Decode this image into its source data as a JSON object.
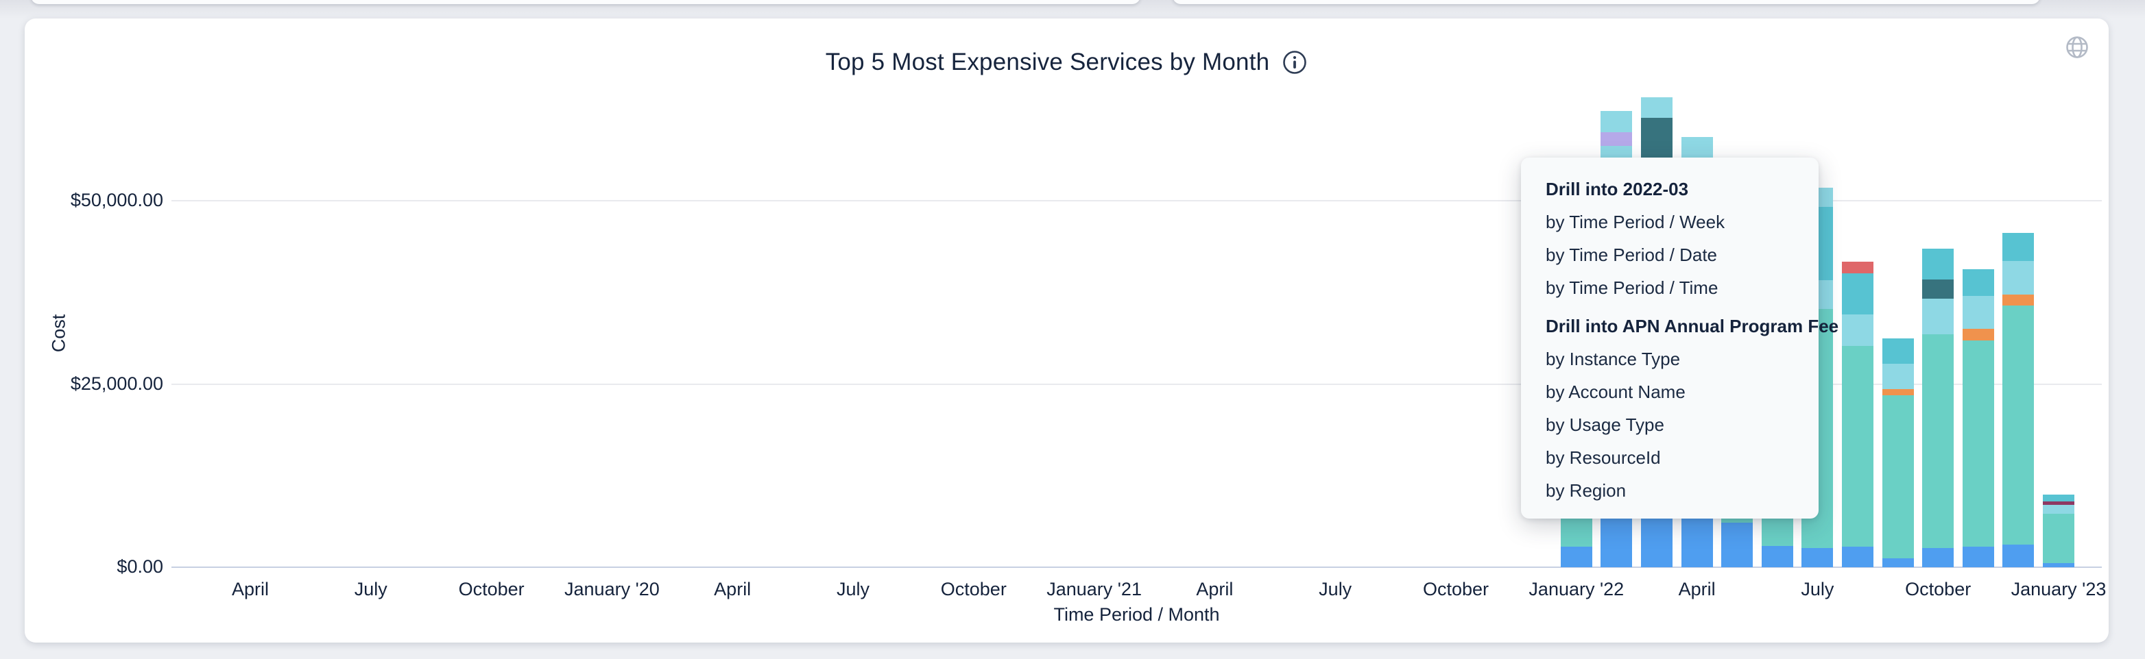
{
  "header": {
    "title": "Top 5 Most Expensive Services by Month",
    "info_icon": "info-circle",
    "globe_icon": "globe"
  },
  "colors": {
    "blue": "#4f9ef0",
    "seafoam": "#6ad0c5",
    "lightcyan": "#8ed8e4",
    "teal": "#57c3d2",
    "darkteal": "#37737e",
    "lavender": "#b5a9e9",
    "red": "#df6769",
    "orange": "#f0924d",
    "maroon": "#8e3963",
    "grid": "#e9eaee",
    "axis_base": "#c7d0e2",
    "text": "#15233c"
  },
  "chart_data": {
    "type": "bar",
    "stacked": true,
    "title": "Top 5 Most Expensive Services by Month",
    "xlabel": "Time Period / Month",
    "ylabel": "Cost",
    "ylim": [
      0,
      53500
    ],
    "grid": "horizontal",
    "legend": "none",
    "y_ticks": [
      {
        "label": "$0.00",
        "value": 0
      },
      {
        "label": "$25,000.00",
        "value": 25000
      },
      {
        "label": "$50,000.00",
        "value": 50000
      }
    ],
    "x_months_span": 48,
    "x_ticks": [
      {
        "label": "April",
        "month_index": 2
      },
      {
        "label": "July",
        "month_index": 5
      },
      {
        "label": "October",
        "month_index": 8
      },
      {
        "label": "January '20",
        "month_index": 11
      },
      {
        "label": "April",
        "month_index": 14
      },
      {
        "label": "July",
        "month_index": 17
      },
      {
        "label": "October",
        "month_index": 20
      },
      {
        "label": "January '21",
        "month_index": 23
      },
      {
        "label": "April",
        "month_index": 26
      },
      {
        "label": "July",
        "month_index": 29
      },
      {
        "label": "October",
        "month_index": 32
      },
      {
        "label": "January '22",
        "month_index": 35
      },
      {
        "label": "April",
        "month_index": 38
      },
      {
        "label": "July",
        "month_index": 41
      },
      {
        "label": "October",
        "month_index": 44
      },
      {
        "label": "January '23",
        "month_index": 47
      }
    ],
    "bars": [
      {
        "month": "2022-01",
        "month_index": 35,
        "segments": [
          {
            "color": "blue",
            "value": 2810
          },
          {
            "color": "seafoam",
            "value": 26190
          },
          {
            "color": "lightcyan",
            "value": 3000
          },
          {
            "color": "teal",
            "value": 3000
          }
        ]
      },
      {
        "month": "2022-02",
        "month_index": 36,
        "segments": [
          {
            "color": "blue",
            "value": 12470
          },
          {
            "color": "seafoam",
            "value": 39000
          },
          {
            "color": "lightcyan",
            "value": 6000
          },
          {
            "color": "lavender",
            "value": 1870
          },
          {
            "color": "lightcyan",
            "value": 2900
          }
        ]
      },
      {
        "month": "2022-03",
        "month_index": 37,
        "segments": [
          {
            "color": "blue",
            "value": 12310
          },
          {
            "color": "seafoam",
            "value": 37000
          },
          {
            "color": "darkteal",
            "value": 12000
          },
          {
            "color": "lightcyan",
            "value": 2810
          }
        ]
      },
      {
        "month": "2022-04",
        "month_index": 38,
        "segments": [
          {
            "color": "blue",
            "value": 12690
          },
          {
            "color": "seafoam",
            "value": 40000
          },
          {
            "color": "lightcyan",
            "value": 6000
          }
        ]
      },
      {
        "month": "2022-05",
        "month_index": 39,
        "segments": [
          {
            "color": "blue",
            "value": 6080
          },
          {
            "color": "seafoam",
            "value": 23920
          },
          {
            "color": "lightcyan",
            "value": 3000
          }
        ]
      },
      {
        "month": "2022-06",
        "month_index": 40,
        "segments": [
          {
            "color": "blue",
            "value": 2900
          },
          {
            "color": "seafoam",
            "value": 25100
          },
          {
            "color": "lightcyan",
            "value": 3000
          }
        ]
      },
      {
        "month": "2022-07",
        "month_index": 41,
        "segments": [
          {
            "color": "blue",
            "value": 2620
          },
          {
            "color": "seafoam",
            "value": 32660
          },
          {
            "color": "lightcyan",
            "value": 3840
          },
          {
            "color": "teal",
            "value": 10010
          },
          {
            "color": "lightcyan",
            "value": 2620
          }
        ]
      },
      {
        "month": "2022-08",
        "month_index": 42,
        "segments": [
          {
            "color": "blue",
            "value": 2810
          },
          {
            "color": "seafoam",
            "value": 27420
          },
          {
            "color": "lightcyan",
            "value": 4210
          },
          {
            "color": "teal",
            "value": 5620
          },
          {
            "color": "red",
            "value": 1590
          }
        ]
      },
      {
        "month": "2022-09",
        "month_index": 43,
        "segments": [
          {
            "color": "blue",
            "value": 1220
          },
          {
            "color": "seafoam",
            "value": 22280
          },
          {
            "color": "orange",
            "value": 840
          },
          {
            "color": "lightcyan",
            "value": 3460
          },
          {
            "color": "teal",
            "value": 3370
          }
        ]
      },
      {
        "month": "2022-10",
        "month_index": 44,
        "segments": [
          {
            "color": "blue",
            "value": 2620
          },
          {
            "color": "seafoam",
            "value": 29110
          },
          {
            "color": "lightcyan",
            "value": 4870
          },
          {
            "color": "darkteal",
            "value": 2620
          },
          {
            "color": "teal",
            "value": 4210
          }
        ]
      },
      {
        "month": "2022-11",
        "month_index": 45,
        "segments": [
          {
            "color": "blue",
            "value": 2810
          },
          {
            "color": "seafoam",
            "value": 28080
          },
          {
            "color": "orange",
            "value": 1590
          },
          {
            "color": "lightcyan",
            "value": 4490
          },
          {
            "color": "teal",
            "value": 3650
          }
        ]
      },
      {
        "month": "2022-12",
        "month_index": 46,
        "segments": [
          {
            "color": "blue",
            "value": 3090
          },
          {
            "color": "seafoam",
            "value": 32570
          },
          {
            "color": "orange",
            "value": 1500
          },
          {
            "color": "lightcyan",
            "value": 4590
          },
          {
            "color": "teal",
            "value": 3840
          }
        ]
      },
      {
        "month": "2023-01",
        "month_index": 47,
        "segments": [
          {
            "color": "blue",
            "value": 560
          },
          {
            "color": "seafoam",
            "value": 6740
          },
          {
            "color": "lightcyan",
            "value": 1220
          },
          {
            "color": "maroon",
            "value": 470
          },
          {
            "color": "teal",
            "value": 940
          }
        ]
      }
    ]
  },
  "context_menu": {
    "sections": [
      {
        "header": "Drill into 2022-03",
        "items": [
          "by Time Period / Week",
          "by Time Period / Date",
          "by Time Period / Time"
        ]
      },
      {
        "header": "Drill into APN Annual Program Fee",
        "items": [
          "by Instance Type",
          "by Account Name",
          "by Usage Type",
          "by ResourceId",
          "by Region"
        ]
      }
    ]
  }
}
